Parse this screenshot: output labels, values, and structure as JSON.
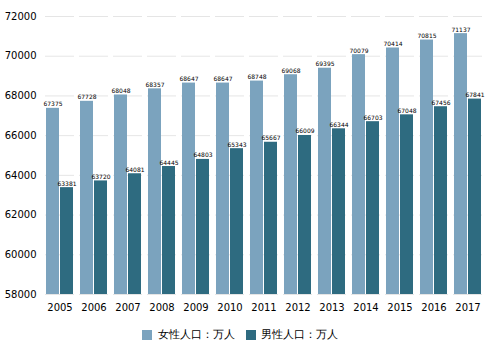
{
  "chart_data": {
    "type": "bar",
    "categories": [
      "2005",
      "2006",
      "2007",
      "2008",
      "2009",
      "2010",
      "2011",
      "2012",
      "2013",
      "2014",
      "2015",
      "2016",
      "2017"
    ],
    "series": [
      {
        "name": "女性人口：万人",
        "color": "#7ba3be",
        "values": [
          67375,
          67728,
          68048,
          68357,
          68647,
          68647,
          68748,
          69068,
          69395,
          70079,
          70414,
          70815,
          71137
        ]
      },
      {
        "name": "男性人口：万人",
        "color": "#2e6b80",
        "values": [
          63381,
          63720,
          64081,
          64445,
          64803,
          65343,
          65667,
          66009,
          66344,
          66703,
          67048,
          67456,
          67841
        ]
      }
    ],
    "ylim": [
      58000,
      72000
    ],
    "yticks": [
      58000,
      60000,
      62000,
      64000,
      66000,
      68000,
      70000,
      72000
    ],
    "grid": true,
    "data_labels": true,
    "legend": "bottom"
  }
}
